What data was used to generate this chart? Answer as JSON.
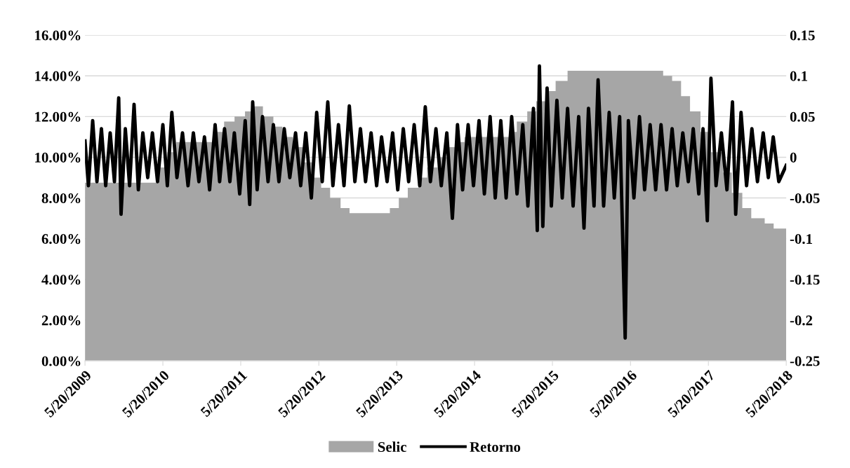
{
  "chart_data": {
    "type": "area",
    "series": [
      {
        "name": "Selic",
        "color": "#a6a6a6",
        "x": [
          "2009-05-20",
          "2010-04-29",
          "2010-06-10",
          "2010-07-22",
          "2011-01-20",
          "2011-03-03",
          "2011-04-21",
          "2011-06-09",
          "2011-07-21",
          "2011-09-01",
          "2011-10-20",
          "2011-12-01",
          "2012-01-19",
          "2012-03-08",
          "2012-04-19",
          "2012-05-31",
          "2012-07-12",
          "2012-08-30",
          "2012-10-11",
          "2013-04-18",
          "2013-05-30",
          "2013-07-11",
          "2013-08-29",
          "2013-10-10",
          "2013-11-28",
          "2014-01-16",
          "2014-02-27",
          "2014-04-03",
          "2014-10-30",
          "2014-12-04",
          "2015-01-22",
          "2015-03-05",
          "2015-04-30",
          "2015-06-04",
          "2015-07-30",
          "2016-10-20",
          "2016-12-01",
          "2017-01-12",
          "2017-02-23",
          "2017-04-13",
          "2017-06-01",
          "2017-07-27",
          "2017-09-07",
          "2017-10-26",
          "2017-12-07",
          "2018-02-08",
          "2018-03-22",
          "2018-05-20"
        ],
        "values": [
          8.75,
          9.5,
          10.25,
          10.75,
          11.25,
          11.75,
          12.0,
          12.25,
          12.5,
          12.0,
          11.5,
          11.0,
          10.5,
          9.75,
          9.0,
          8.5,
          8.0,
          7.5,
          7.25,
          7.5,
          8.0,
          8.5,
          9.0,
          9.5,
          10.0,
          10.5,
          10.75,
          11.0,
          11.25,
          11.75,
          12.25,
          12.75,
          13.25,
          13.75,
          14.25,
          14.0,
          13.75,
          13.0,
          12.25,
          11.25,
          10.25,
          9.25,
          8.25,
          7.5,
          7.0,
          6.75,
          6.5,
          6.5
        ]
      },
      {
        "name": "Retorno",
        "type": "line",
        "axis": "y2",
        "color": "#000000",
        "x": [
          "2009-05-20",
          "2009-06-05",
          "2009-06-25",
          "2009-07-15",
          "2009-08-05",
          "2009-08-25",
          "2009-09-15",
          "2009-10-05",
          "2009-10-25",
          "2009-11-05",
          "2009-11-25",
          "2009-12-15",
          "2010-01-05",
          "2010-01-25",
          "2010-02-15",
          "2010-03-10",
          "2010-04-01",
          "2010-04-25",
          "2010-05-20",
          "2010-06-10",
          "2010-07-01",
          "2010-07-25",
          "2010-08-20",
          "2010-09-15",
          "2010-10-10",
          "2010-11-05",
          "2010-12-01",
          "2010-12-25",
          "2011-01-20",
          "2011-02-10",
          "2011-03-05",
          "2011-03-30",
          "2011-04-20",
          "2011-05-15",
          "2011-06-10",
          "2011-07-01",
          "2011-07-15",
          "2011-08-05",
          "2011-08-30",
          "2011-09-25",
          "2011-10-20",
          "2011-11-15",
          "2011-12-10",
          "2012-01-05",
          "2012-02-01",
          "2012-02-25",
          "2012-03-20",
          "2012-04-15",
          "2012-05-10",
          "2012-06-05",
          "2012-07-01",
          "2012-07-25",
          "2012-08-20",
          "2012-09-15",
          "2012-10-10",
          "2012-11-05",
          "2012-12-01",
          "2012-12-25",
          "2013-01-20",
          "2013-02-15",
          "2013-03-10",
          "2013-04-05",
          "2013-05-01",
          "2013-05-25",
          "2013-06-20",
          "2013-07-15",
          "2013-08-10",
          "2013-09-05",
          "2013-10-01",
          "2013-10-25",
          "2013-11-20",
          "2013-12-15",
          "2014-01-10",
          "2014-02-05",
          "2014-03-01",
          "2014-03-25",
          "2014-04-20",
          "2014-05-15",
          "2014-06-10",
          "2014-07-05",
          "2014-08-01",
          "2014-08-25",
          "2014-09-20",
          "2014-10-15",
          "2014-11-10",
          "2014-12-05",
          "2015-01-01",
          "2015-01-25",
          "2015-02-20",
          "2015-03-10",
          "2015-03-20",
          "2015-04-05",
          "2015-04-25",
          "2015-05-15",
          "2015-06-10",
          "2015-07-05",
          "2015-07-30",
          "2015-08-25",
          "2015-09-20",
          "2015-10-15",
          "2015-11-05",
          "2015-12-01",
          "2015-12-20",
          "2016-01-15",
          "2016-02-10",
          "2016-03-05",
          "2016-03-30",
          "2016-04-25",
          "2016-05-10",
          "2016-06-05",
          "2016-07-01",
          "2016-07-25",
          "2016-08-20",
          "2016-09-15",
          "2016-10-10",
          "2016-11-05",
          "2016-12-01",
          "2016-12-25",
          "2017-01-20",
          "2017-02-15",
          "2017-03-10",
          "2017-04-05",
          "2017-04-25",
          "2017-05-15",
          "2017-06-01",
          "2017-06-25",
          "2017-07-20",
          "2017-08-15",
          "2017-09-10",
          "2017-09-25",
          "2017-10-20",
          "2017-11-15",
          "2017-12-10",
          "2018-01-05",
          "2018-02-01",
          "2018-02-25",
          "2018-03-20",
          "2018-04-15",
          "2018-05-20"
        ],
        "values": [
          0.02,
          -0.035,
          0.045,
          -0.03,
          0.035,
          -0.035,
          0.03,
          -0.03,
          0.073,
          -0.07,
          0.035,
          -0.035,
          0.065,
          -0.04,
          0.03,
          -0.025,
          0.03,
          -0.03,
          0.04,
          -0.035,
          0.055,
          -0.025,
          0.03,
          -0.035,
          0.03,
          -0.03,
          0.025,
          -0.04,
          0.04,
          -0.03,
          0.035,
          -0.03,
          0.03,
          -0.045,
          0.045,
          -0.058,
          0.068,
          -0.04,
          0.05,
          -0.03,
          0.04,
          -0.03,
          0.035,
          -0.025,
          0.03,
          -0.035,
          0.03,
          -0.05,
          0.055,
          -0.03,
          0.068,
          -0.035,
          0.04,
          -0.035,
          0.063,
          -0.03,
          0.035,
          -0.03,
          0.03,
          -0.035,
          0.025,
          -0.03,
          0.03,
          -0.04,
          0.035,
          -0.03,
          0.04,
          -0.035,
          0.062,
          -0.03,
          0.035,
          -0.035,
          0.03,
          -0.075,
          0.04,
          -0.04,
          0.04,
          -0.035,
          0.045,
          -0.045,
          0.05,
          -0.05,
          0.045,
          -0.05,
          0.05,
          -0.045,
          0.04,
          -0.06,
          0.06,
          -0.09,
          0.112,
          -0.085,
          0.085,
          -0.06,
          0.07,
          -0.05,
          0.06,
          -0.06,
          0.05,
          -0.087,
          0.06,
          -0.06,
          0.095,
          -0.06,
          0.055,
          -0.05,
          0.05,
          -0.222,
          0.045,
          -0.05,
          0.05,
          -0.04,
          0.04,
          -0.04,
          0.04,
          -0.04,
          0.035,
          -0.035,
          0.03,
          -0.03,
          0.035,
          -0.045,
          0.035,
          -0.078,
          0.097,
          -0.035,
          0.03,
          -0.04,
          0.068,
          -0.07,
          0.055,
          -0.035,
          0.035,
          -0.03,
          0.03,
          -0.025,
          0.025,
          -0.03,
          -0.01
        ]
      }
    ],
    "xlim": [
      "2009-05-20",
      "2018-05-20"
    ],
    "xticks": [
      {
        "value": "2009-05-20",
        "label": "5/20/2009"
      },
      {
        "value": "2010-05-20",
        "label": "5/20/2010"
      },
      {
        "value": "2011-05-20",
        "label": "5/20/2011"
      },
      {
        "value": "2012-05-20",
        "label": "5/20/2012"
      },
      {
        "value": "2013-05-20",
        "label": "5/20/2013"
      },
      {
        "value": "2014-05-20",
        "label": "5/20/2014"
      },
      {
        "value": "2015-05-20",
        "label": "5/20/2015"
      },
      {
        "value": "2016-05-20",
        "label": "5/20/2016"
      },
      {
        "value": "2017-05-20",
        "label": "5/20/2017"
      },
      {
        "value": "2018-05-20",
        "label": "5/20/2018"
      }
    ],
    "ylim": [
      0,
      16
    ],
    "yticks": [
      {
        "value": 0,
        "label": "0.00%"
      },
      {
        "value": 2,
        "label": "2.00%"
      },
      {
        "value": 4,
        "label": "4.00%"
      },
      {
        "value": 6,
        "label": "6.00%"
      },
      {
        "value": 8,
        "label": "8.00%"
      },
      {
        "value": 10,
        "label": "10.00%"
      },
      {
        "value": 12,
        "label": "12.00%"
      },
      {
        "value": 14,
        "label": "14.00%"
      },
      {
        "value": 16,
        "label": "16.00%"
      }
    ],
    "y2lim": [
      -0.25,
      0.15
    ],
    "y2ticks": [
      -0.25,
      -0.2,
      -0.15,
      -0.1,
      -0.05,
      0,
      0.05,
      0.1,
      0.15
    ],
    "grid": "y",
    "legend": "bottom"
  }
}
